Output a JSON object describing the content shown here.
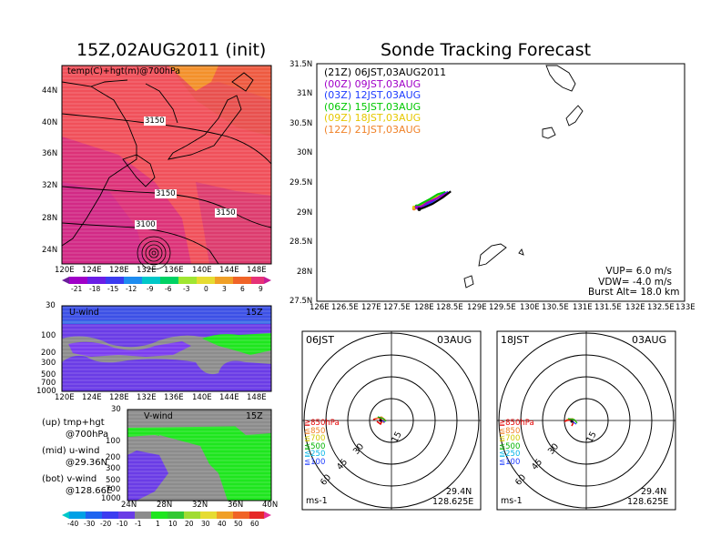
{
  "titles": {
    "left": "15Z,02AUG2011 (init)",
    "right": "Sonde Tracking Forecast"
  },
  "top_map": {
    "label": "temp(C)+hgt(m)@700hPa",
    "contours": [
      "3150",
      "3150",
      "3150",
      "3100"
    ],
    "lat_ticks": [
      "44N",
      "40N",
      "36N",
      "32N",
      "28N",
      "24N"
    ],
    "lon_ticks": [
      "120E",
      "124E",
      "128E",
      "132E",
      "136E",
      "140E",
      "144E",
      "148E"
    ],
    "colorbar": [
      "-21",
      "-18",
      "-15",
      "-12",
      "-9",
      "-6",
      "-3",
      "0",
      "3",
      "6",
      "9"
    ]
  },
  "u_panel": {
    "label": "U-wind",
    "time": "15Z",
    "p_ticks": [
      "30",
      "100",
      "200",
      "300",
      "500",
      "700",
      "1000"
    ],
    "lon_ticks": [
      "120E",
      "124E",
      "128E",
      "132E",
      "136E",
      "140E",
      "144E",
      "148E"
    ]
  },
  "v_panel": {
    "label": "V-wind",
    "time": "15Z",
    "p_ticks": [
      "30",
      "100",
      "200",
      "300",
      "500",
      "700",
      "1000"
    ],
    "lat_ticks": [
      "24N",
      "28N",
      "32N",
      "36N",
      "40N"
    ],
    "colorbar": [
      "-40",
      "-30",
      "-20",
      "-10",
      "-1",
      "1",
      "10",
      "20",
      "30",
      "40",
      "50",
      "60"
    ]
  },
  "notes": [
    "(up) tmp+hgt",
    "@700hPa",
    "(mid) u-wind",
    "@29.36N",
    "(bot) v-wind",
    "@128.66E"
  ],
  "track_map": {
    "lat_ticks": [
      "31.5N",
      "31N",
      "30.5N",
      "30N",
      "29.5N",
      "29N",
      "28.5N",
      "28N",
      "27.5N"
    ],
    "lon_ticks": [
      "126E",
      "126.5E",
      "127E",
      "127.5E",
      "128E",
      "128.5E",
      "129E",
      "129.5E",
      "130E",
      "130.5E",
      "131E",
      "131.5E",
      "132E",
      "132.5E",
      "133E"
    ],
    "legend": [
      {
        "text": "(21Z) 06JST,03AUG2011",
        "color": "#000000"
      },
      {
        "text": "(00Z) 09JST,03AUG",
        "color": "#a000c8"
      },
      {
        "text": "(03Z) 12JST,03AUG",
        "color": "#1e3cff"
      },
      {
        "text": "(06Z) 15JST,03AUG",
        "color": "#00c800"
      },
      {
        "text": "(09Z) 18JST,03AUG",
        "color": "#e6c800"
      },
      {
        "text": "(12Z) 21JST,03AUG",
        "color": "#f08228"
      }
    ],
    "params": [
      "VUP= 6.0 m/s",
      "VDW= -4.0 m/s",
      "Burst Alt= 18.0 km"
    ]
  },
  "polar_left": {
    "time": "06JST",
    "date": "03AUG",
    "rings": [
      "15",
      "30",
      "45",
      "60"
    ],
    "levels": [
      {
        "text": "≧850hPa",
        "color": "#e60000"
      },
      {
        "text": "≦850",
        "color": "#f08228"
      },
      {
        "text": "≦700",
        "color": "#d2c800"
      },
      {
        "text": "≦500",
        "color": "#00b400"
      },
      {
        "text": "≦250",
        "color": "#00b4e6"
      },
      {
        "text": "≦100",
        "color": "#1e3cff"
      }
    ],
    "unit": "ms-1",
    "lat": "29.4N",
    "lon": "128.625E"
  },
  "polar_right": {
    "time": "18JST",
    "date": "03AUG",
    "rings": [
      "15",
      "30",
      "45",
      "60"
    ],
    "levels": [
      {
        "text": "≧850hPa",
        "color": "#e60000"
      },
      {
        "text": "≦850",
        "color": "#f08228"
      },
      {
        "text": "≦700",
        "color": "#d2c800"
      },
      {
        "text": "≦500",
        "color": "#00b400"
      },
      {
        "text": "≦250",
        "color": "#00b4e6"
      },
      {
        "text": "≦100",
        "color": "#1e3cff"
      }
    ],
    "unit": "ms-1",
    "lat": "29.4N",
    "lon": "128.625E"
  },
  "chart_data": [
    {
      "type": "line",
      "title": "Sonde Tracking Forecast",
      "xlim": [
        126,
        133
      ],
      "ylim": [
        27.5,
        31.5
      ],
      "series": [
        {
          "name": "(21Z) 06JST,03AUG2011",
          "x": [
            127.95,
            128.05,
            128.2,
            128.4,
            128.55
          ],
          "y": [
            29.05,
            29.08,
            29.14,
            29.25,
            29.35
          ]
        },
        {
          "name": "(00Z) 09JST,03AUG",
          "x": [
            127.9,
            128.0,
            128.1,
            128.3,
            128.5
          ],
          "y": [
            29.08,
            29.1,
            29.16,
            29.24,
            29.33
          ]
        },
        {
          "name": "(03Z) 12JST,03AUG",
          "x": [
            127.95,
            128.05,
            128.2,
            128.35,
            128.5
          ],
          "y": [
            29.06,
            29.1,
            29.18,
            29.27,
            29.34
          ]
        },
        {
          "name": "(06Z) 15JST,03AUG",
          "x": [
            127.9,
            128.0,
            128.15,
            128.3,
            128.45
          ],
          "y": [
            29.1,
            29.15,
            29.22,
            29.3,
            29.34
          ]
        },
        {
          "name": "(09Z) 18JST,03AUG",
          "x": [
            127.85,
            127.95,
            128.1,
            128.25,
            128.4
          ],
          "y": [
            29.08,
            29.12,
            29.18,
            29.25,
            29.3
          ]
        },
        {
          "name": "(12Z) 21JST,03AUG",
          "x": [
            127.85,
            127.95,
            128.05,
            128.2,
            128.35
          ],
          "y": [
            29.06,
            29.1,
            29.15,
            29.22,
            29.28
          ]
        }
      ]
    }
  ]
}
